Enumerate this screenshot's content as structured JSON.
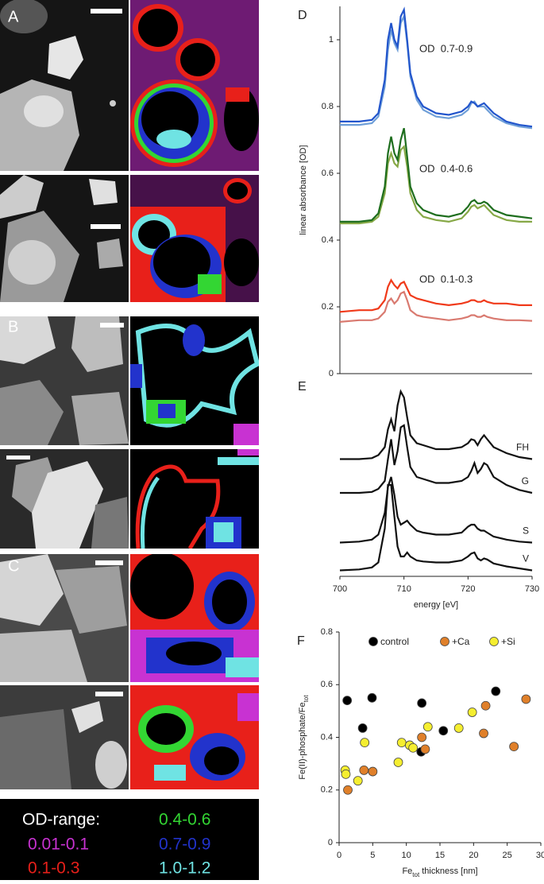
{
  "image_panels": {
    "labels": [
      "A",
      "B",
      "C"
    ]
  },
  "od_legend": {
    "title": "OD-range:",
    "items": [
      {
        "label": "0.01-0.1",
        "color": "#c832d2"
      },
      {
        "label": "0.1-0.3",
        "color": "#e8201a"
      },
      {
        "label": "0.4-0.6",
        "color": "#33d633"
      },
      {
        "label": "0.7-0.9",
        "color": "#2233cc"
      },
      {
        "label": "1.0-1.2",
        "color": "#6fe3e3"
      }
    ]
  },
  "chart_data": [
    {
      "type": "line",
      "panel": "D",
      "ylabel": "linear absorbance [OD]",
      "xlim": [
        700,
        730
      ],
      "ylim": [
        0,
        1.1
      ],
      "yticks": [
        0,
        0.2,
        0.4,
        0.6,
        0.8,
        1
      ],
      "annotations": [
        "OD  0.7-0.9",
        "OD  0.4-0.6",
        "OD  0.1-0.3"
      ],
      "x": [
        700,
        703,
        705,
        706,
        707,
        707.5,
        708,
        708.5,
        709,
        709.5,
        710,
        710.5,
        711,
        712,
        713,
        715,
        717,
        719,
        720,
        720.5,
        721,
        721.5,
        722,
        722.5,
        723,
        724,
        726,
        728,
        730
      ],
      "series": [
        {
          "color": "#6f9fd8",
          "values": [
            0.745,
            0.745,
            0.75,
            0.77,
            0.86,
            0.97,
            1.03,
            0.99,
            0.97,
            1.05,
            1.07,
            0.99,
            0.89,
            0.82,
            0.79,
            0.77,
            0.765,
            0.775,
            0.79,
            0.81,
            0.815,
            0.8,
            0.8,
            0.8,
            0.79,
            0.77,
            0.75,
            0.74,
            0.735
          ]
        },
        {
          "color": "#2255cc",
          "values": [
            0.755,
            0.755,
            0.76,
            0.78,
            0.88,
            1.0,
            1.05,
            1.0,
            0.98,
            1.07,
            1.09,
            1.0,
            0.9,
            0.83,
            0.8,
            0.78,
            0.775,
            0.785,
            0.8,
            0.815,
            0.81,
            0.8,
            0.805,
            0.81,
            0.8,
            0.78,
            0.755,
            0.745,
            0.74
          ]
        },
        {
          "color": "#86a846",
          "values": [
            0.45,
            0.45,
            0.455,
            0.47,
            0.54,
            0.63,
            0.66,
            0.63,
            0.62,
            0.67,
            0.68,
            0.62,
            0.54,
            0.49,
            0.47,
            0.46,
            0.455,
            0.465,
            0.485,
            0.5,
            0.505,
            0.495,
            0.5,
            0.505,
            0.495,
            0.475,
            0.46,
            0.455,
            0.455
          ]
        },
        {
          "color": "#1e6e1e",
          "values": [
            0.455,
            0.455,
            0.46,
            0.48,
            0.56,
            0.66,
            0.71,
            0.66,
            0.64,
            0.7,
            0.735,
            0.65,
            0.56,
            0.51,
            0.49,
            0.475,
            0.47,
            0.48,
            0.5,
            0.515,
            0.52,
            0.51,
            0.51,
            0.515,
            0.51,
            0.49,
            0.475,
            0.47,
            0.465
          ]
        },
        {
          "color": "#d97a70",
          "values": [
            0.155,
            0.16,
            0.16,
            0.165,
            0.185,
            0.215,
            0.225,
            0.21,
            0.22,
            0.24,
            0.245,
            0.22,
            0.19,
            0.175,
            0.17,
            0.165,
            0.16,
            0.165,
            0.17,
            0.175,
            0.175,
            0.17,
            0.17,
            0.175,
            0.17,
            0.165,
            0.16,
            0.16,
            0.158
          ]
        },
        {
          "color": "#f03a1a",
          "values": [
            0.185,
            0.19,
            0.19,
            0.195,
            0.22,
            0.26,
            0.28,
            0.265,
            0.255,
            0.27,
            0.275,
            0.255,
            0.235,
            0.225,
            0.22,
            0.21,
            0.205,
            0.21,
            0.215,
            0.22,
            0.22,
            0.215,
            0.215,
            0.22,
            0.215,
            0.21,
            0.21,
            0.205,
            0.205
          ]
        }
      ]
    },
    {
      "type": "line",
      "panel": "E",
      "xlabel": "energy [eV]",
      "xlim": [
        700,
        730
      ],
      "xticks": [
        700,
        710,
        720,
        730
      ],
      "ylim": [
        0,
        10
      ],
      "x": [
        700,
        703,
        705,
        706,
        707,
        707.5,
        708,
        708.5,
        709,
        709.5,
        710,
        710.5,
        711,
        712,
        713,
        715,
        717,
        719,
        720,
        720.5,
        721,
        721.5,
        722,
        722.5,
        723,
        724,
        726,
        728,
        730
      ],
      "series": [
        {
          "name": "FH",
          "color": "#111111",
          "values": [
            5.9,
            5.9,
            5.95,
            6.1,
            6.5,
            7.4,
            7.9,
            7.3,
            8.6,
            9.3,
            9.0,
            8.0,
            7.1,
            6.7,
            6.6,
            6.4,
            6.4,
            6.5,
            6.7,
            6.9,
            6.85,
            6.6,
            6.9,
            7.1,
            6.9,
            6.5,
            6.2,
            6.0,
            5.9
          ]
        },
        {
          "name": "G",
          "color": "#111111",
          "values": [
            4.2,
            4.2,
            4.25,
            4.4,
            4.8,
            5.9,
            6.9,
            5.6,
            6.3,
            7.5,
            7.6,
            6.5,
            5.5,
            5.0,
            4.9,
            4.7,
            4.7,
            4.8,
            5.0,
            5.3,
            5.7,
            5.2,
            5.4,
            5.7,
            5.6,
            5.0,
            4.6,
            4.35,
            4.2
          ]
        },
        {
          "name": "S",
          "color": "#111111",
          "values": [
            1.7,
            1.75,
            1.85,
            2.1,
            3.2,
            4.5,
            5.0,
            4.1,
            3.0,
            2.6,
            2.7,
            2.8,
            2.6,
            2.3,
            2.2,
            2.1,
            2.1,
            2.2,
            2.5,
            2.6,
            2.6,
            2.4,
            2.3,
            2.3,
            2.2,
            2.0,
            1.85,
            1.75,
            1.7
          ]
        },
        {
          "name": "V",
          "color": "#111111",
          "values": [
            0.3,
            0.35,
            0.45,
            0.7,
            2.4,
            4.6,
            4.6,
            3.0,
            1.5,
            1.0,
            1.0,
            1.2,
            1.0,
            0.8,
            0.75,
            0.7,
            0.7,
            0.8,
            1.0,
            1.15,
            1.2,
            0.9,
            0.8,
            0.9,
            0.85,
            0.65,
            0.5,
            0.4,
            0.3
          ]
        }
      ]
    },
    {
      "type": "scatter",
      "panel": "F",
      "ylabel": {
        "text": "Fe(II)-phosphate/Fe",
        "sub": "tot"
      },
      "xlabel": {
        "text": "Fe",
        "sub": "tot",
        "rest": " thickness [nm]"
      },
      "xlim": [
        0,
        30
      ],
      "xticks": [
        0,
        5,
        10,
        15,
        20,
        25,
        30
      ],
      "ylim": [
        0,
        0.8
      ],
      "yticks": [
        0,
        0.2,
        0.4,
        0.6,
        0.8
      ],
      "series": [
        {
          "name": "control",
          "color": "#000000",
          "x": [
            1.2,
            4.9,
            3.5,
            12.3,
            12.2,
            15.5,
            23.3
          ],
          "y": [
            0.54,
            0.55,
            0.435,
            0.53,
            0.345,
            0.425,
            0.575
          ]
        },
        {
          "name": "+Ca",
          "color": "#e0802a",
          "x": [
            1.3,
            3.7,
            5,
            12.3,
            12.8,
            21.5,
            21.8,
            26,
            27.8
          ],
          "y": [
            0.2,
            0.275,
            0.27,
            0.4,
            0.355,
            0.415,
            0.52,
            0.365,
            0.545
          ]
        },
        {
          "name": "+Si",
          "color": "#f5ee30",
          "x": [
            0.9,
            1,
            2.8,
            3.8,
            8.8,
            9.3,
            10.5,
            11,
            13.2,
            17.8,
            19.8
          ],
          "y": [
            0.275,
            0.26,
            0.235,
            0.38,
            0.305,
            0.38,
            0.37,
            0.36,
            0.44,
            0.435,
            0.495
          ]
        }
      ]
    }
  ]
}
